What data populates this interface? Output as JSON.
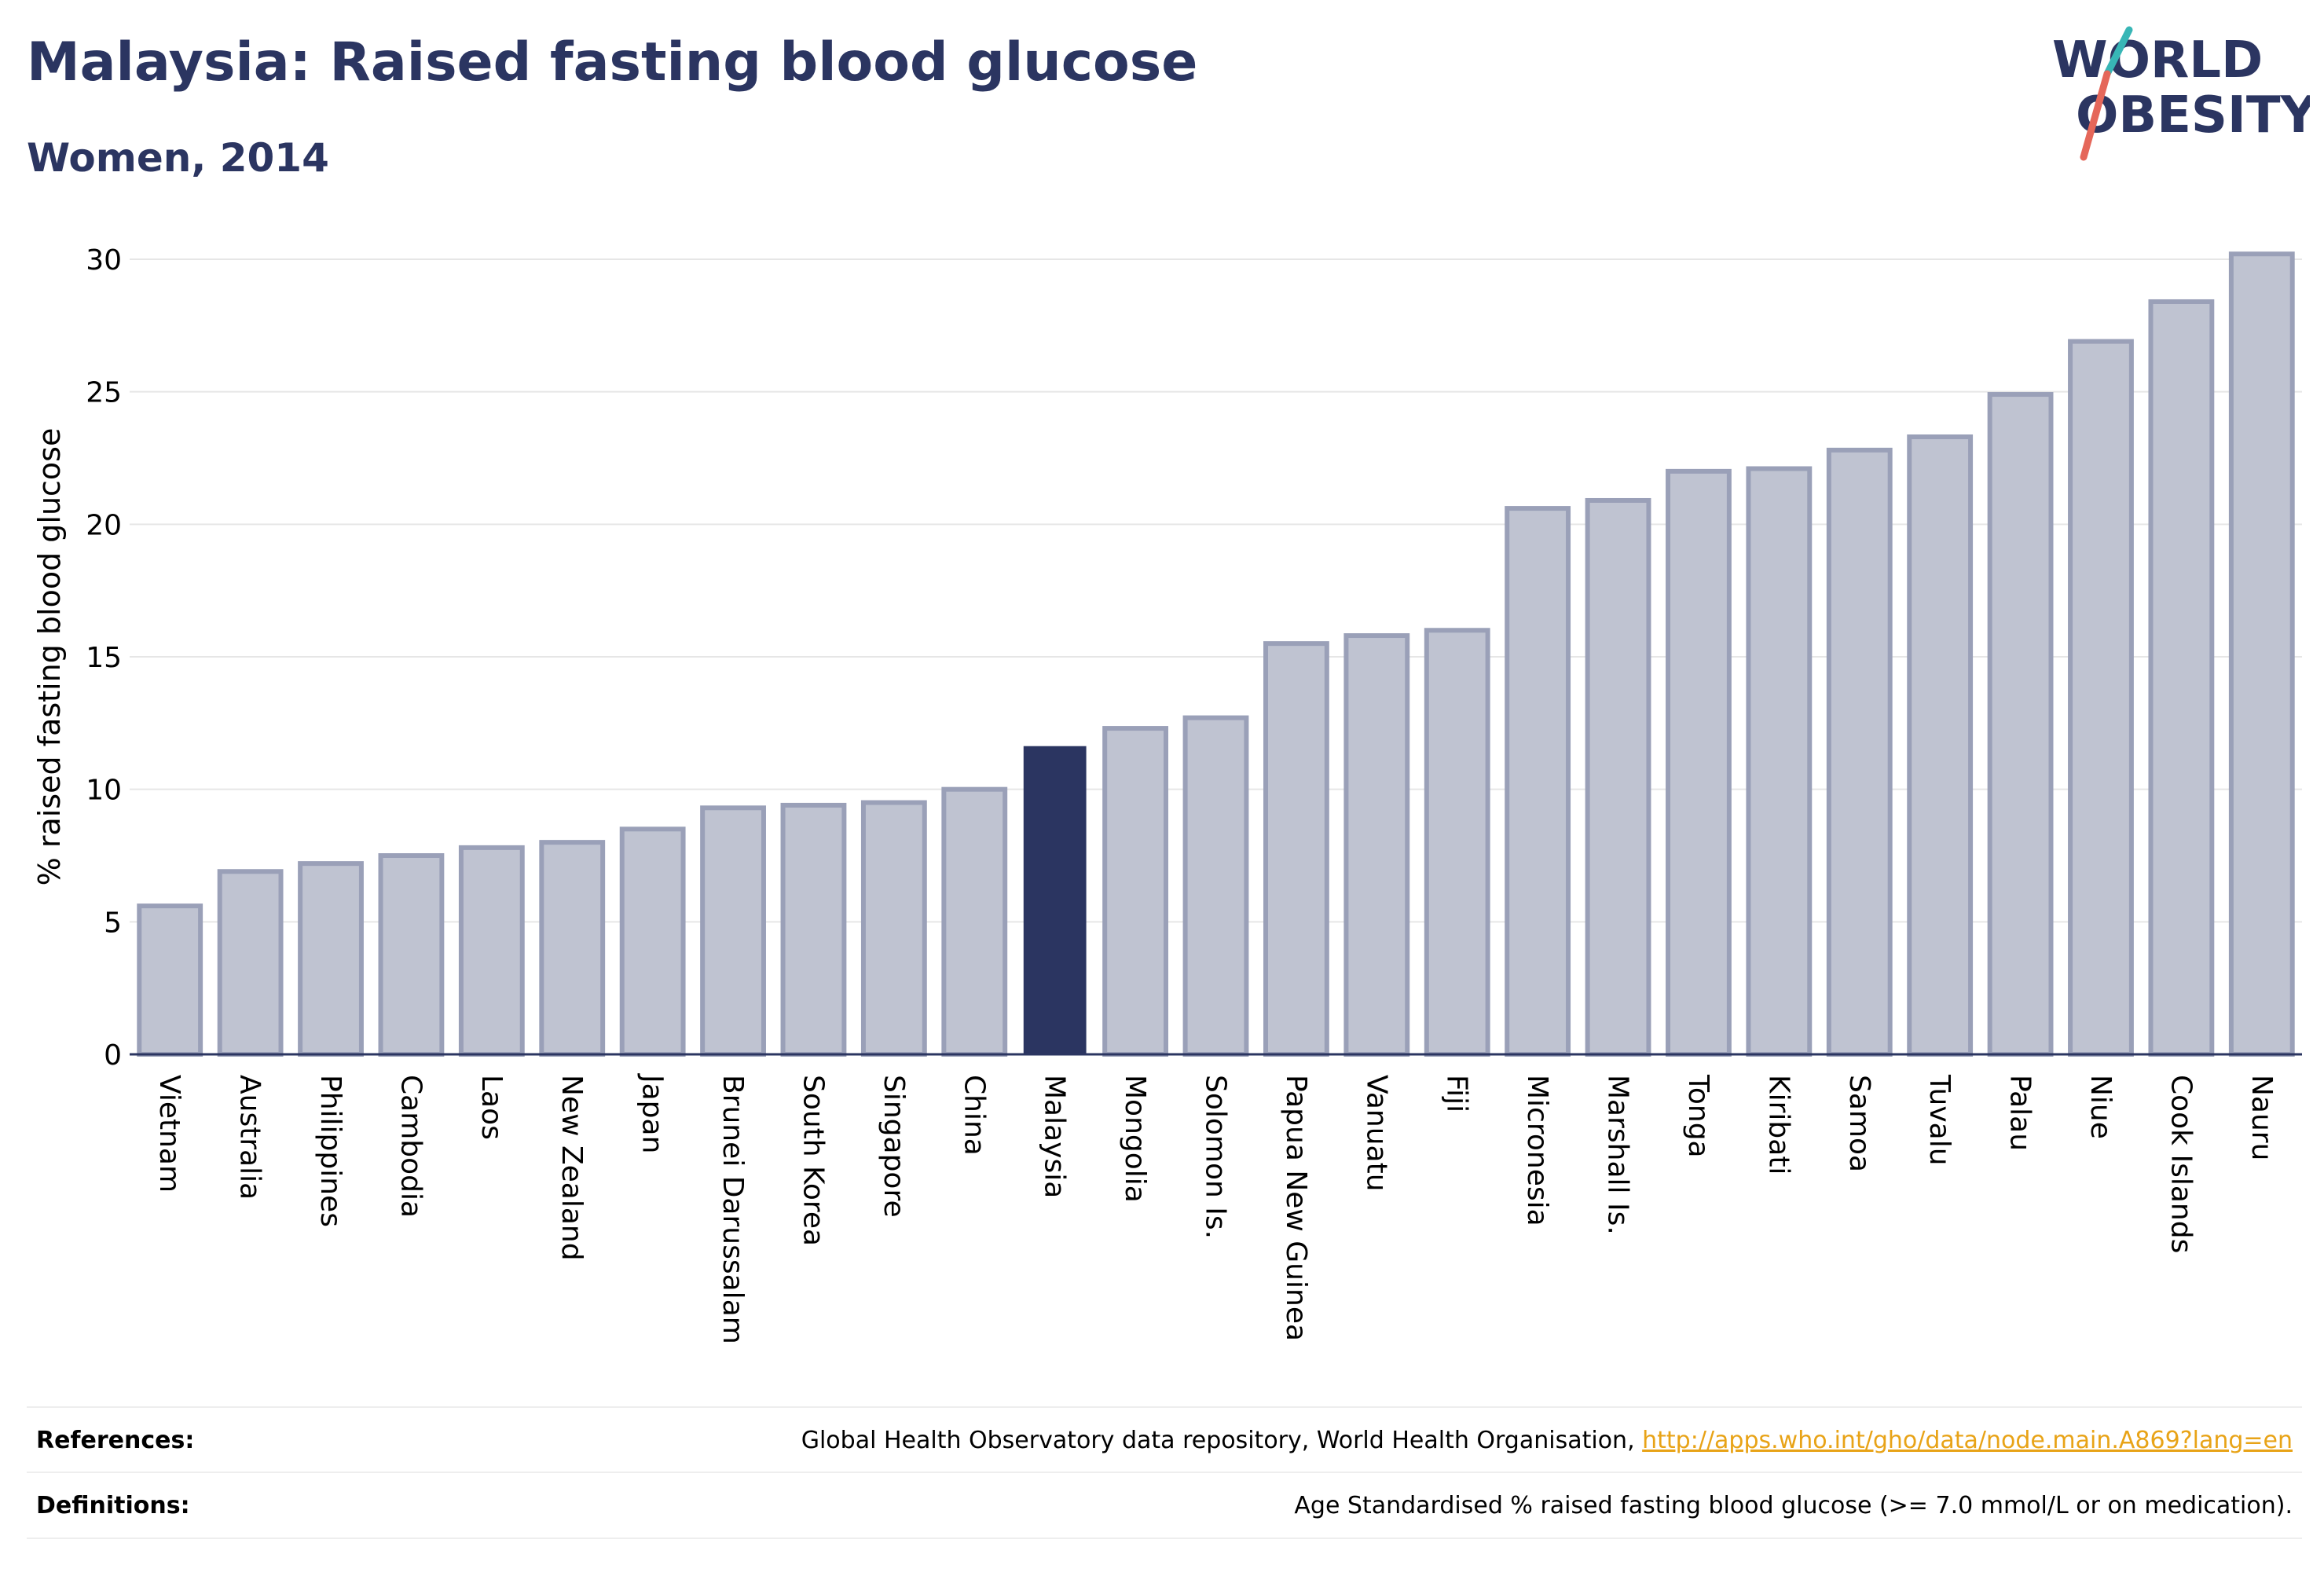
{
  "header": {
    "title": "Malaysia: Raised fasting blood glucose",
    "subtitle": "Women, 2014"
  },
  "logo": {
    "line1": "WORLD",
    "line2": "OBESITY",
    "text_color": "#2b3561",
    "slash_color_top": "#38b6b6",
    "slash_color_bottom": "#e5675a"
  },
  "colors": {
    "bar_fill": "#bfc3d1",
    "bar_stroke": "#9aa0b8",
    "highlight_fill": "#2b3561",
    "axis": "#2b3561",
    "grid": "#e6e6e6"
  },
  "chart_data": {
    "type": "bar",
    "ylabel": "% raised fasting blood glucose",
    "xlabel": "",
    "ylim": [
      0,
      30
    ],
    "yticks": [
      0,
      5,
      10,
      15,
      20,
      25,
      30
    ],
    "highlight": "Malaysia",
    "grid": true,
    "categories": [
      "Vietnam",
      "Australia",
      "Philippines",
      "Cambodia",
      "Laos",
      "New Zealand",
      "Japan",
      "Brunei Darussalam",
      "South Korea",
      "Singapore",
      "China",
      "Malaysia",
      "Mongolia",
      "Solomon Is.",
      "Papua New Guinea",
      "Vanuatu",
      "Fiji",
      "Micronesia",
      "Marshall Is.",
      "Tonga",
      "Kiribati",
      "Samoa",
      "Tuvalu",
      "Palau",
      "Niue",
      "Cook Islands",
      "Nauru"
    ],
    "values": [
      5.6,
      6.9,
      7.2,
      7.5,
      7.8,
      8.0,
      8.5,
      9.3,
      9.4,
      9.5,
      10.0,
      11.6,
      12.3,
      12.7,
      15.5,
      15.8,
      16.0,
      20.6,
      20.9,
      22.0,
      22.1,
      22.8,
      23.3,
      24.9,
      26.9,
      28.4,
      30.2
    ]
  },
  "footer": {
    "references_label": "References:",
    "references_text": "Global Health Observatory data repository, World Health Organisation, ",
    "references_link": "http://apps.who.int/gho/data/node.main.A869?lang=en",
    "definitions_label": "Definitions:",
    "definitions_text": "Age Standardised % raised fasting blood glucose (>= 7.0 mmol/L or on medication)."
  }
}
